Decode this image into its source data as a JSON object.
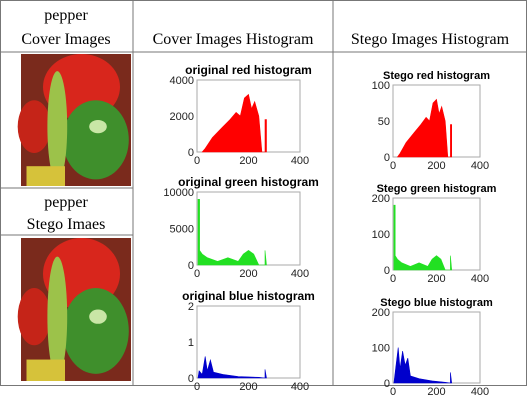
{
  "header": {
    "col1": [
      "pepper",
      "Cover Images"
    ],
    "col2": "Cover Images Histogram",
    "col3": "Stego  Images Histogram"
  },
  "stego_label": [
    "pepper",
    "Stego Imaes"
  ],
  "cover_histograms": [
    {
      "title": "original red histogram",
      "yticks": [
        "0",
        "2000",
        "4000"
      ],
      "xticks": [
        "0",
        "200",
        "400"
      ]
    },
    {
      "title": "original green histogram",
      "yticks": [
        "0",
        "5000",
        "10000"
      ],
      "xticks": [
        "0",
        "200",
        "400"
      ]
    },
    {
      "title": "original blue histogram",
      "yticks": [
        "0",
        "1",
        "2"
      ],
      "xticks": [
        "0",
        "200",
        "400"
      ]
    }
  ],
  "stego_histograms": [
    {
      "title": "Stego red histogram",
      "yticks": [
        "0",
        "50",
        "100"
      ],
      "xticks": [
        "0",
        "200",
        "400"
      ]
    },
    {
      "title": "Stego green histogram",
      "yticks": [
        "0",
        "100",
        "200"
      ],
      "xticks": [
        "0",
        "200",
        "400"
      ]
    },
    {
      "title": "Stego blue histogram",
      "yticks": [
        "0",
        "100",
        "200"
      ],
      "xticks": [
        "0",
        "200",
        "400"
      ]
    }
  ]
}
